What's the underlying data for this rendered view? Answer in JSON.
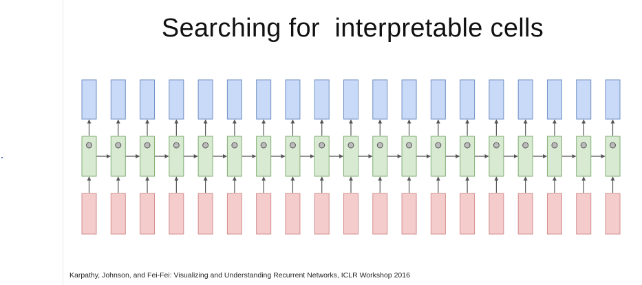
{
  "slide": {
    "title": "Searching for  interpretable cells",
    "citation": "Karpathy, Johnson, and Fei-Fei: Visualizing and Understanding Recurrent Networks, ICLR Workshop 2016"
  },
  "diagram": {
    "timesteps": 19,
    "colors": {
      "output_fill": "#c9daf8",
      "output_stroke": "#6f8fc2",
      "hidden_fill": "#d9ead3",
      "hidden_stroke": "#7fae72",
      "input_fill": "#f4cccc",
      "input_stroke": "#d28c8c",
      "cell_dot_fill": "#bbbbbb",
      "cell_dot_stroke": "#555555",
      "arrow": "#555555"
    }
  }
}
